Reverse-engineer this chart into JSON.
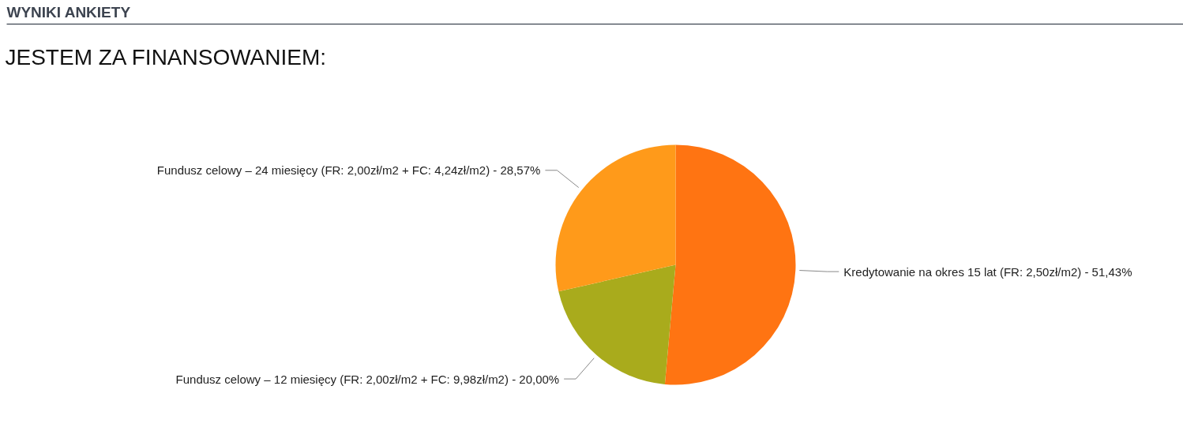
{
  "chart_data": {
    "type": "pie",
    "title": "WYNIKI ANKIETY",
    "subtitle": "JESTEM ZA FINANSOWANIEM:",
    "categories": [
      "Kredytowanie na okres 15 lat (FR: 2,50zł/m2)",
      "Fundusz celowy – 12 miesięcy (FR: 2,00zł/m2 + FC: 9,98zł/m2)",
      "Fundusz celowy – 24 miesięcy (FR: 2,00zł/m2 + FC: 4,24zł/m2)"
    ],
    "values": [
      51.43,
      20.0,
      28.57
    ],
    "value_labels": [
      "51,43%",
      "20,00%",
      "28,57%"
    ],
    "colors": [
      "#ff7412",
      "#a9ab1c",
      "#ff9a1a"
    ]
  }
}
